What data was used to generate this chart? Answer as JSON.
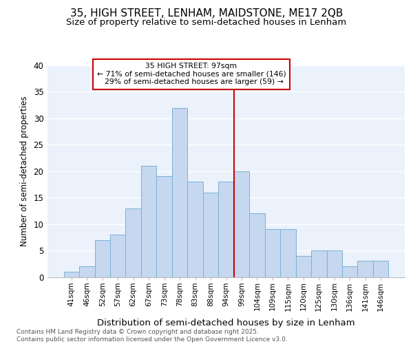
{
  "title1": "35, HIGH STREET, LENHAM, MAIDSTONE, ME17 2QB",
  "title2": "Size of property relative to semi-detached houses in Lenham",
  "xlabel": "Distribution of semi-detached houses by size in Lenham",
  "ylabel": "Number of semi-detached properties",
  "categories": [
    "41sqm",
    "46sqm",
    "52sqm",
    "57sqm",
    "62sqm",
    "67sqm",
    "73sqm",
    "78sqm",
    "83sqm",
    "88sqm",
    "94sqm",
    "99sqm",
    "104sqm",
    "109sqm",
    "115sqm",
    "120sqm",
    "125sqm",
    "130sqm",
    "136sqm",
    "141sqm",
    "146sqm"
  ],
  "values": [
    1,
    2,
    7,
    8,
    13,
    21,
    19,
    32,
    18,
    16,
    18,
    20,
    12,
    9,
    9,
    4,
    5,
    5,
    2,
    3,
    3
  ],
  "bar_color": "#C5D8F0",
  "bar_edge_color": "#7BAFD4",
  "red_line_index": 11,
  "highlight_label": "35 HIGH STREET: 97sqm",
  "pct_smaller": 71,
  "n_smaller": 146,
  "pct_larger": 29,
  "n_larger": 59,
  "red_line_color": "#CC0000",
  "annotation_box_edge": "#CC0000",
  "ylim": [
    0,
    40
  ],
  "yticks": [
    0,
    5,
    10,
    15,
    20,
    25,
    30,
    35,
    40
  ],
  "bg_color": "#EBF2FB",
  "grid_color": "#FFFFFF",
  "title1_fontsize": 11,
  "title2_fontsize": 9.5,
  "footnote1": "Contains HM Land Registry data © Crown copyright and database right 2025.",
  "footnote2": "Contains public sector information licensed under the Open Government Licence v3.0."
}
